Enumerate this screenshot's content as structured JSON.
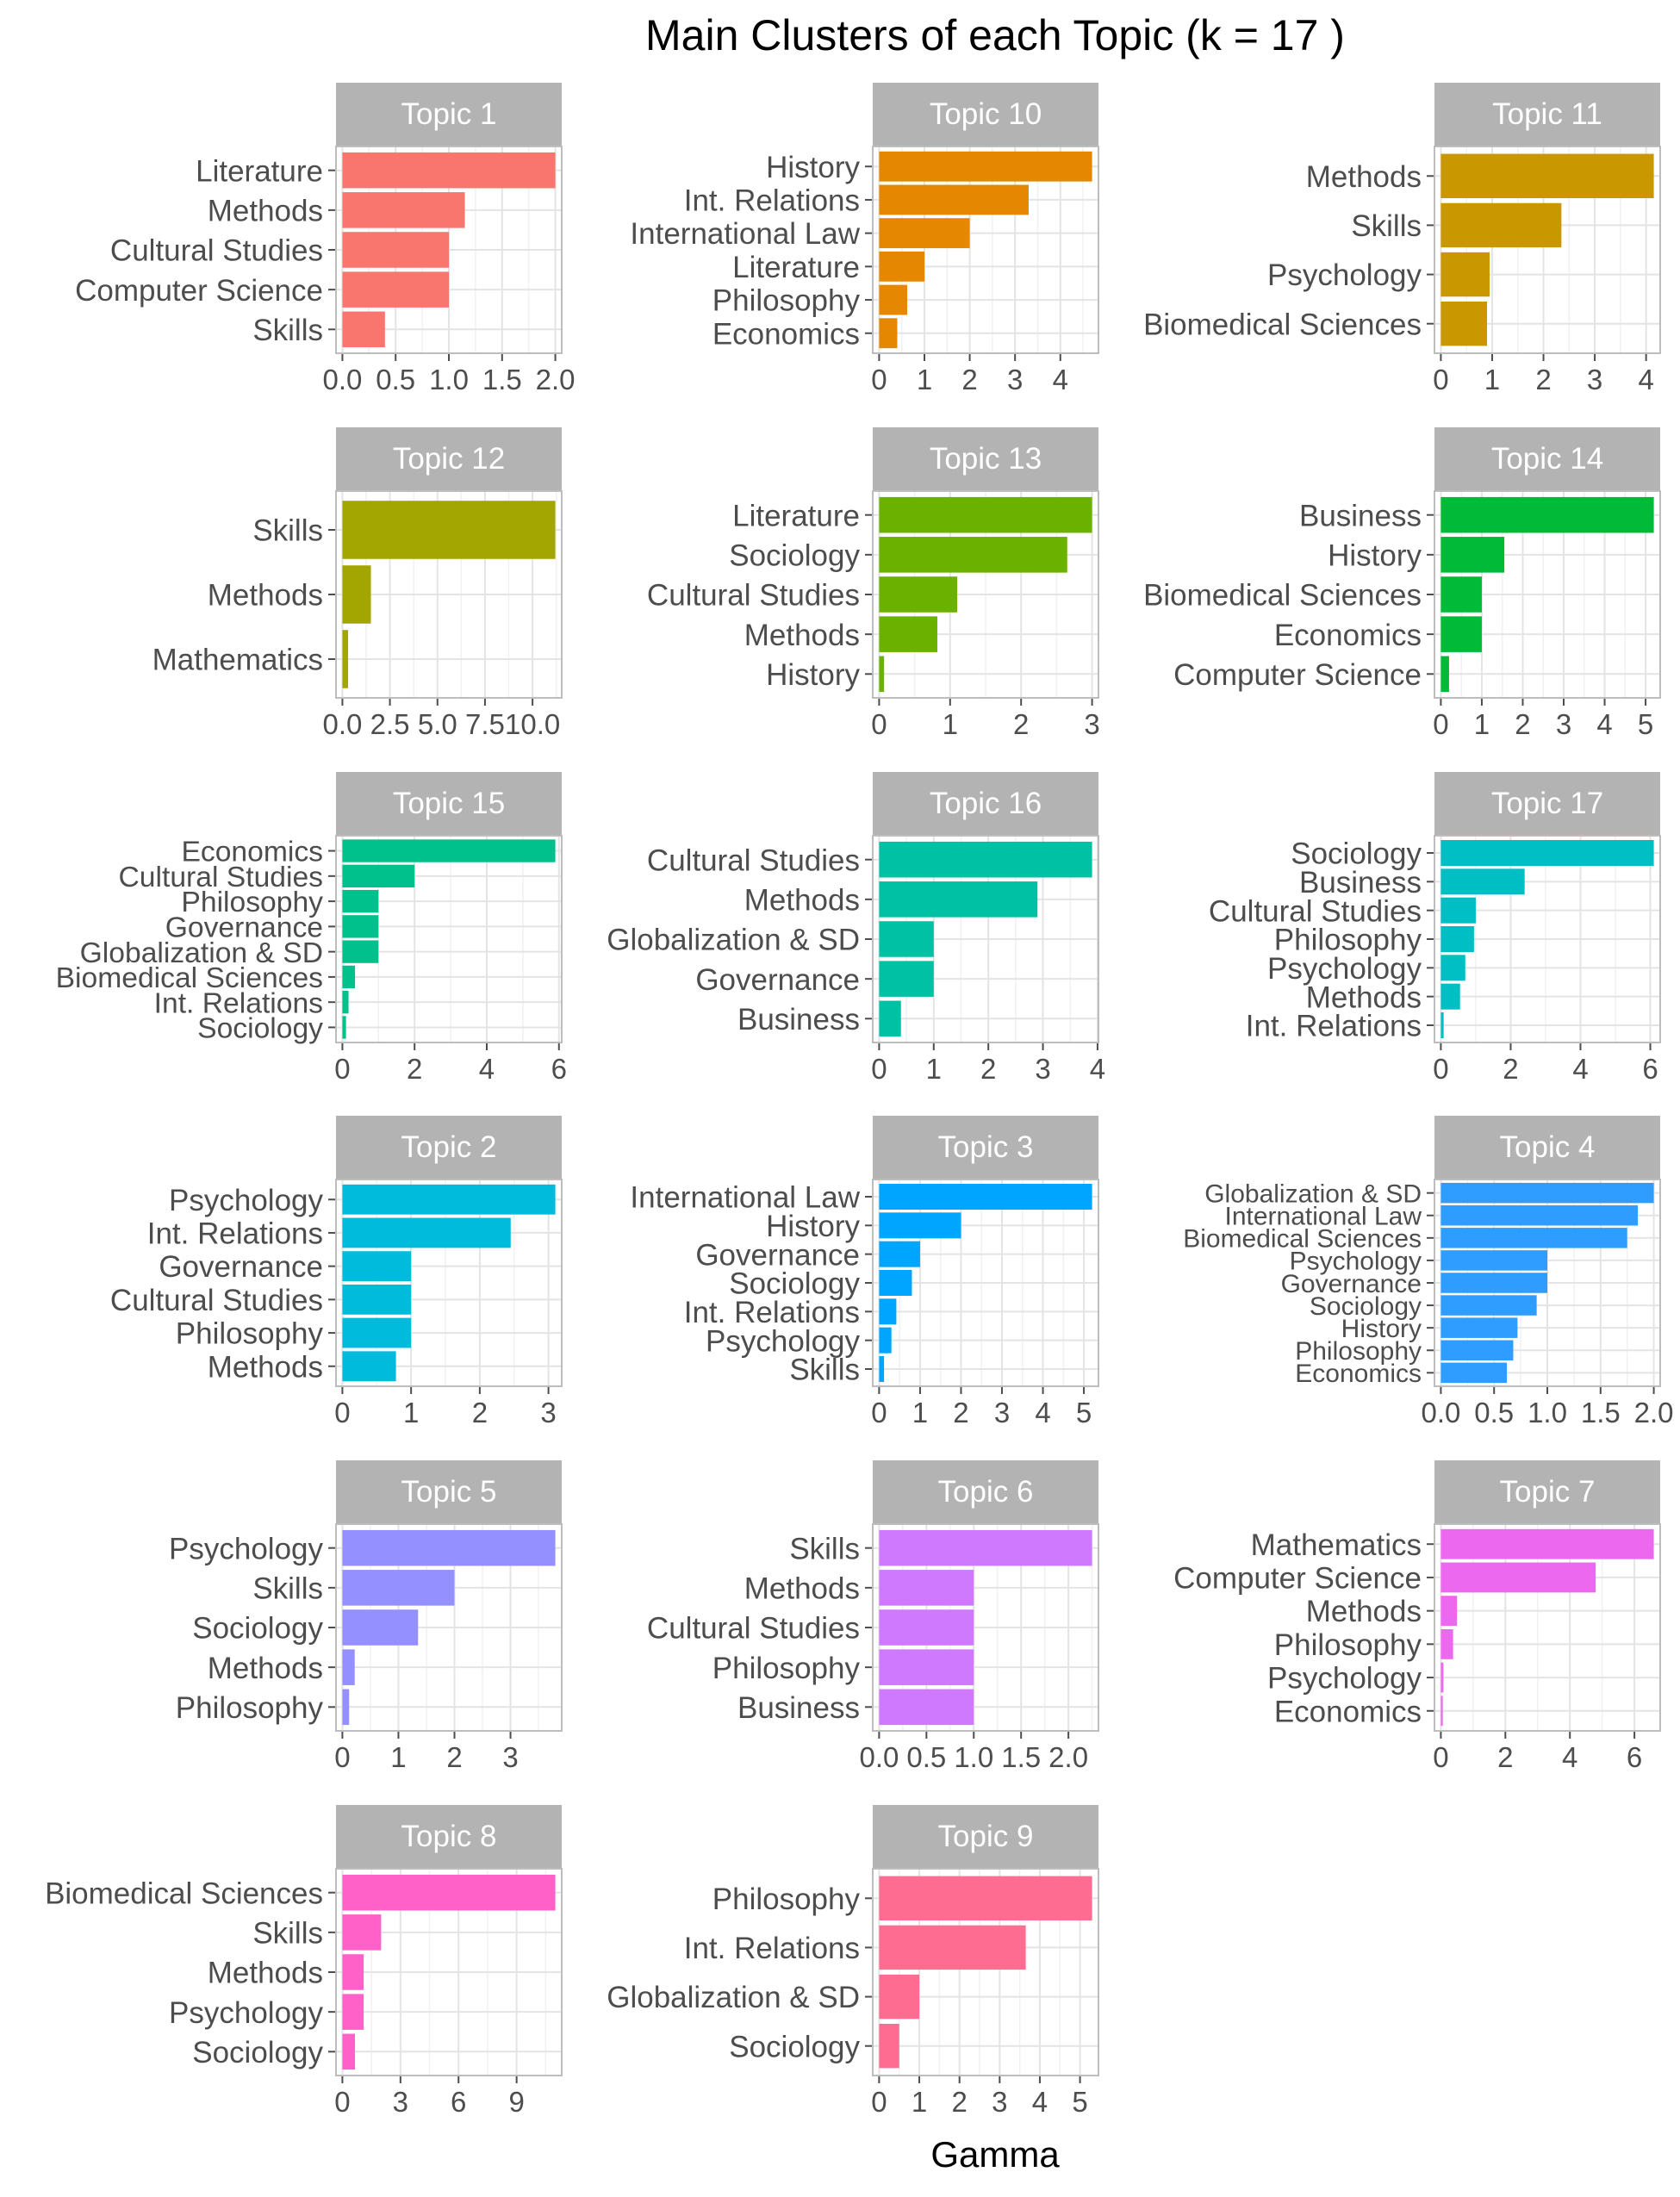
{
  "title": "Main Clusters of each Topic (k = 17 )",
  "xlabel": "Gamma",
  "chart_data": [
    {
      "type": "bar",
      "title": "Topic 1",
      "color": "#F8766D",
      "xlim": [
        0,
        2.0
      ],
      "ticks": [
        0,
        0.5,
        1,
        1.5,
        2
      ],
      "tick_labels": [
        "0.0",
        "0.5",
        "1.0",
        "1.5",
        "2.0"
      ],
      "categories": [
        "Literature",
        "Methods",
        "Cultural Studies",
        "Computer Science",
        "Skills"
      ],
      "values": [
        2.0,
        1.15,
        1.0,
        1.0,
        0.4
      ]
    },
    {
      "type": "bar",
      "title": "Topic 10",
      "color": "#E58700",
      "xlim": [
        0,
        4.7
      ],
      "ticks": [
        0,
        1,
        2,
        3,
        4
      ],
      "tick_labels": [
        "0",
        "1",
        "2",
        "3",
        "4"
      ],
      "categories": [
        "History",
        "Int. Relations",
        "International Law",
        "Literature",
        "Philosophy",
        "Economics"
      ],
      "values": [
        4.7,
        3.3,
        2.0,
        1.0,
        0.62,
        0.4
      ]
    },
    {
      "type": "bar",
      "title": "Topic 11",
      "color": "#C99800",
      "xlim": [
        0,
        4.15
      ],
      "ticks": [
        0,
        1,
        2,
        3,
        4
      ],
      "tick_labels": [
        "0",
        "1",
        "2",
        "3",
        "4"
      ],
      "categories": [
        "Methods",
        "Skills",
        "Psychology",
        "Biomedical Sciences"
      ],
      "values": [
        4.15,
        2.35,
        0.95,
        0.9
      ]
    },
    {
      "type": "bar",
      "title": "Topic 12",
      "color": "#A3A500",
      "xlim": [
        0,
        11.2
      ],
      "ticks": [
        0,
        2.5,
        5,
        7.5,
        10
      ],
      "tick_labels": [
        "0.0",
        "2.5",
        "5.0",
        "7.5",
        "10.0"
      ],
      "categories": [
        "Skills",
        "Methods",
        "Mathematics"
      ],
      "values": [
        11.2,
        1.5,
        0.3
      ]
    },
    {
      "type": "bar",
      "title": "Topic 13",
      "color": "#6BB100",
      "xlim": [
        0,
        3.0
      ],
      "ticks": [
        0,
        1,
        2,
        3
      ],
      "tick_labels": [
        "0",
        "1",
        "2",
        "3"
      ],
      "categories": [
        "Literature",
        "Sociology",
        "Cultural Studies",
        "Methods",
        "History"
      ],
      "values": [
        3.0,
        2.65,
        1.1,
        0.82,
        0.07
      ]
    },
    {
      "type": "bar",
      "title": "Topic 14",
      "color": "#00BA38",
      "xlim": [
        0,
        5.2
      ],
      "ticks": [
        0,
        1,
        2,
        3,
        4,
        5
      ],
      "tick_labels": [
        "0",
        "1",
        "2",
        "3",
        "4",
        "5"
      ],
      "categories": [
        "Business",
        "History",
        "Biomedical Sciences",
        "Economics",
        "Computer Science"
      ],
      "values": [
        5.2,
        1.55,
        1.0,
        1.0,
        0.2
      ]
    },
    {
      "type": "bar",
      "title": "Topic 15",
      "color": "#00C08B",
      "xlim": [
        0,
        5.9
      ],
      "ticks": [
        0,
        2,
        4,
        6
      ],
      "tick_labels": [
        "0",
        "2",
        "4",
        "6"
      ],
      "categories": [
        "Economics",
        "Cultural Studies",
        "Philosophy",
        "Governance",
        "Globalization & SD",
        "Biomedical Sciences",
        "Int. Relations",
        "Sociology"
      ],
      "values": [
        5.9,
        2.0,
        1.0,
        1.0,
        1.0,
        0.35,
        0.17,
        0.1
      ]
    },
    {
      "type": "bar",
      "title": "Topic 16",
      "color": "#00C1A3",
      "xlim": [
        0,
        3.9
      ],
      "ticks": [
        0,
        1,
        2,
        3,
        4
      ],
      "tick_labels": [
        "0",
        "1",
        "2",
        "3",
        "4"
      ],
      "categories": [
        "Cultural Studies",
        "Methods",
        "Globalization & SD",
        "Governance",
        "Business"
      ],
      "values": [
        3.9,
        2.9,
        1.0,
        1.0,
        0.4
      ]
    },
    {
      "type": "bar",
      "title": "Topic 17",
      "color": "#00BFC4",
      "xlim": [
        0,
        6.1
      ],
      "ticks": [
        0,
        2,
        4,
        6
      ],
      "tick_labels": [
        "0",
        "2",
        "4",
        "6"
      ],
      "categories": [
        "Sociology",
        "Business",
        "Cultural Studies",
        "Philosophy",
        "Psychology",
        "Methods",
        "Int. Relations"
      ],
      "values": [
        6.1,
        2.4,
        1.0,
        0.95,
        0.7,
        0.55,
        0.08
      ]
    },
    {
      "type": "bar",
      "title": "Topic 2",
      "color": "#00BBDC",
      "xlim": [
        0,
        3.1
      ],
      "ticks": [
        0,
        1,
        2,
        3
      ],
      "tick_labels": [
        "0",
        "1",
        "2",
        "3"
      ],
      "categories": [
        "Psychology",
        "Int. Relations",
        "Governance",
        "Cultural Studies",
        "Philosophy",
        "Methods"
      ],
      "values": [
        3.1,
        2.45,
        1.0,
        1.0,
        1.0,
        0.78
      ]
    },
    {
      "type": "bar",
      "title": "Topic 3",
      "color": "#00A5FF",
      "xlim": [
        0,
        5.2
      ],
      "ticks": [
        0,
        1,
        2,
        3,
        4,
        5
      ],
      "tick_labels": [
        "0",
        "1",
        "2",
        "3",
        "4",
        "5"
      ],
      "categories": [
        "International Law",
        "History",
        "Governance",
        "Sociology",
        "Int. Relations",
        "Psychology",
        "Skills"
      ],
      "values": [
        5.2,
        2.0,
        1.0,
        0.8,
        0.42,
        0.3,
        0.12
      ]
    },
    {
      "type": "bar",
      "title": "Topic 4",
      "color": "#2E9DFF",
      "xlim": [
        0,
        2.0
      ],
      "ticks": [
        0,
        0.5,
        1,
        1.5,
        2
      ],
      "tick_labels": [
        "0.0",
        "0.5",
        "1.0",
        "1.5",
        "2.0"
      ],
      "categories": [
        "Globalization & SD",
        "International Law",
        "Biomedical Sciences",
        "Psychology",
        "Governance",
        "Sociology",
        "History",
        "Philosophy",
        "Economics"
      ],
      "values": [
        2.0,
        1.85,
        1.75,
        1.0,
        1.0,
        0.9,
        0.72,
        0.68,
        0.62
      ]
    },
    {
      "type": "bar",
      "title": "Topic 5",
      "color": "#9590FF",
      "xlim": [
        0,
        3.8
      ],
      "ticks": [
        0,
        1,
        2,
        3
      ],
      "tick_labels": [
        "0",
        "1",
        "2",
        "3"
      ],
      "categories": [
        "Psychology",
        "Skills",
        "Sociology",
        "Methods",
        "Philosophy"
      ],
      "values": [
        3.8,
        2.0,
        1.35,
        0.22,
        0.12
      ]
    },
    {
      "type": "bar",
      "title": "Topic 6",
      "color": "#CE79FF",
      "xlim": [
        0,
        2.25
      ],
      "ticks": [
        0,
        0.5,
        1,
        1.5,
        2
      ],
      "tick_labels": [
        "0.0",
        "0.5",
        "1.0",
        "1.5",
        "2.0"
      ],
      "categories": [
        "Skills",
        "Methods",
        "Cultural Studies",
        "Philosophy",
        "Business"
      ],
      "values": [
        2.25,
        1.0,
        1.0,
        1.0,
        1.0
      ]
    },
    {
      "type": "bar",
      "title": "Topic 7",
      "color": "#EC69EF",
      "xlim": [
        0,
        6.6
      ],
      "ticks": [
        0,
        2,
        4,
        6
      ],
      "tick_labels": [
        "0",
        "2",
        "4",
        "6"
      ],
      "categories": [
        "Mathematics",
        "Computer Science",
        "Methods",
        "Philosophy",
        "Psychology",
        "Economics"
      ],
      "values": [
        6.6,
        4.8,
        0.5,
        0.38,
        0.08,
        0.06
      ]
    },
    {
      "type": "bar",
      "title": "Topic 8",
      "color": "#FF61C9",
      "xlim": [
        0,
        11.0
      ],
      "ticks": [
        0,
        3,
        6,
        9
      ],
      "tick_labels": [
        "0",
        "3",
        "6",
        "9"
      ],
      "categories": [
        "Biomedical Sciences",
        "Skills",
        "Methods",
        "Psychology",
        "Sociology"
      ],
      "values": [
        11.0,
        2.0,
        1.1,
        1.1,
        0.65
      ]
    },
    {
      "type": "bar",
      "title": "Topic 9",
      "color": "#FF6C91",
      "xlim": [
        0,
        5.3
      ],
      "ticks": [
        0,
        1,
        2,
        3,
        4,
        5
      ],
      "tick_labels": [
        "0",
        "1",
        "2",
        "3",
        "4",
        "5"
      ],
      "categories": [
        "Philosophy",
        "Int. Relations",
        "Globalization & SD",
        "Sociology"
      ],
      "values": [
        5.3,
        3.65,
        1.0,
        0.5
      ]
    }
  ]
}
